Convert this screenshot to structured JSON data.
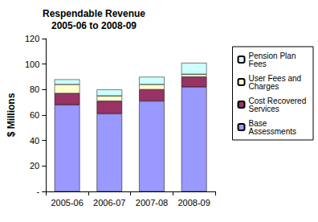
{
  "chart_data": {
    "type": "bar",
    "title": "Respendable Revenue",
    "subtitle": "2005-06 to 2008-09",
    "ylabel": "$ Millions",
    "categories": [
      "2005-06",
      "2006-07",
      "2007-08",
      "2008-09"
    ],
    "series": [
      {
        "name": "Base Assessments",
        "color": "#9999ff",
        "values": [
          68,
          61,
          71,
          82
        ]
      },
      {
        "name": "Cost Recovered Services",
        "color": "#993366",
        "values": [
          9,
          10,
          9,
          8
        ]
      },
      {
        "name": "User Fees and Charges",
        "color": "#ffffcc",
        "values": [
          7,
          4,
          4,
          2
        ]
      },
      {
        "name": "Pension Plan Fees",
        "color": "#ccffff",
        "values": [
          4,
          5,
          6,
          9
        ]
      }
    ],
    "ylim": [
      0,
      120
    ],
    "yticks": [
      {
        "value": 0,
        "label": "-"
      },
      20,
      40,
      60,
      80,
      100,
      120
    ],
    "stacked": true,
    "grid": false,
    "legend": "right"
  }
}
